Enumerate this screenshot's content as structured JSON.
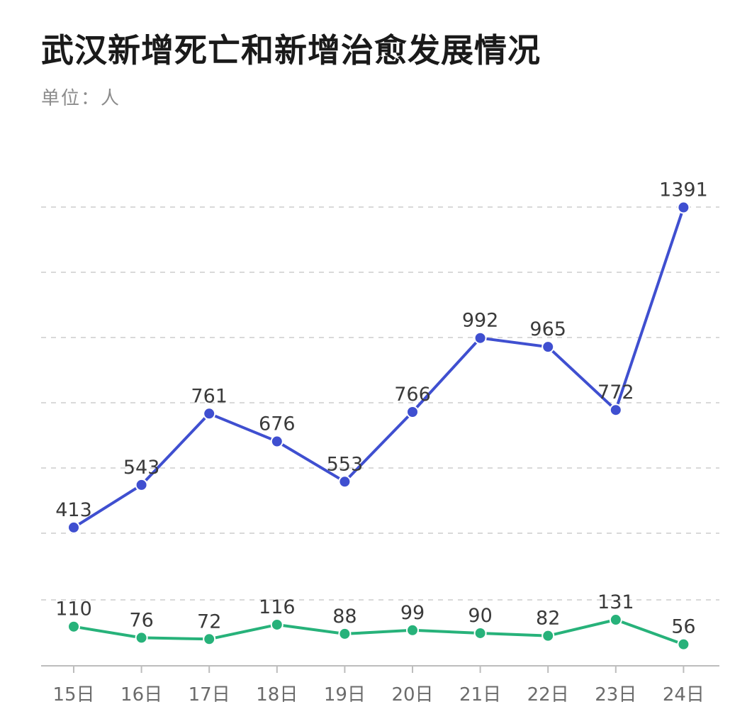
{
  "title": "武汉新增死亡和新增治愈发展情况",
  "subtitle": "单位：人",
  "colors": {
    "cured": "#3f4fd0",
    "deaths": "#27b27a",
    "grid": "#d9d9d9",
    "axis": "#bdbdbd"
  },
  "chart_data": {
    "type": "line",
    "title": "武汉新增死亡和新增治愈发展情况",
    "unit": "单位：人",
    "categories": [
      "15日",
      "16日",
      "17日",
      "18日",
      "19日",
      "20日",
      "21日",
      "22日",
      "23日",
      "24日"
    ],
    "series": [
      {
        "key": "cured",
        "values": [
          413,
          543,
          761,
          676,
          553,
          766,
          992,
          965,
          772,
          1391
        ]
      },
      {
        "key": "deaths",
        "values": [
          110,
          76,
          72,
          116,
          88,
          99,
          90,
          82,
          131,
          56
        ]
      }
    ],
    "ylim": [
      0,
      1400
    ],
    "grid": true,
    "legend": "none"
  }
}
